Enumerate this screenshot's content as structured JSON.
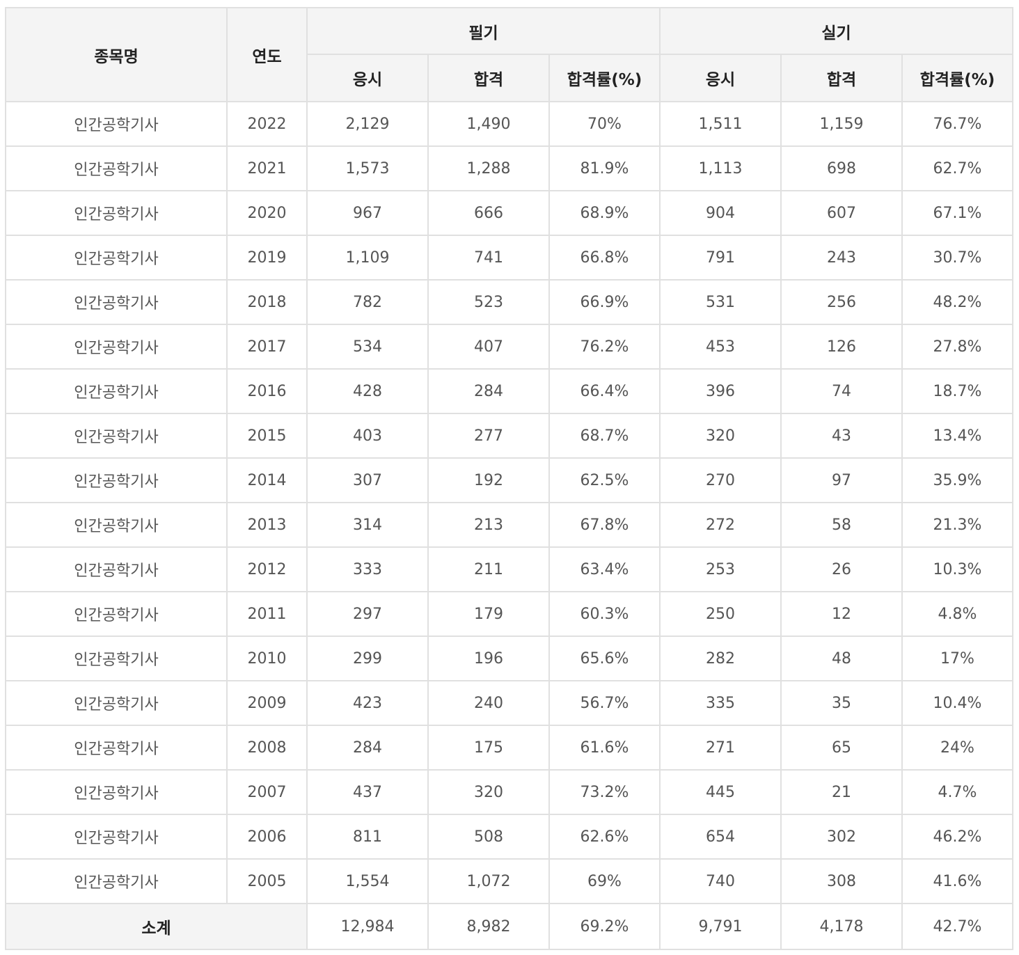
{
  "header": {
    "col_name": "종목명",
    "col_year": "연도",
    "group_written": "필기",
    "group_practical": "실기",
    "sub_apply": "응시",
    "sub_pass": "합격",
    "sub_rate": "합격률(%)"
  },
  "rows": [
    {
      "name": "인간공학기사",
      "year": "2022",
      "w_apply": "2,129",
      "w_pass": "1,490",
      "w_rate": "70%",
      "p_apply": "1,511",
      "p_pass": "1,159",
      "p_rate": "76.7%"
    },
    {
      "name": "인간공학기사",
      "year": "2021",
      "w_apply": "1,573",
      "w_pass": "1,288",
      "w_rate": "81.9%",
      "p_apply": "1,113",
      "p_pass": "698",
      "p_rate": "62.7%"
    },
    {
      "name": "인간공학기사",
      "year": "2020",
      "w_apply": "967",
      "w_pass": "666",
      "w_rate": "68.9%",
      "p_apply": "904",
      "p_pass": "607",
      "p_rate": "67.1%"
    },
    {
      "name": "인간공학기사",
      "year": "2019",
      "w_apply": "1,109",
      "w_pass": "741",
      "w_rate": "66.8%",
      "p_apply": "791",
      "p_pass": "243",
      "p_rate": "30.7%"
    },
    {
      "name": "인간공학기사",
      "year": "2018",
      "w_apply": "782",
      "w_pass": "523",
      "w_rate": "66.9%",
      "p_apply": "531",
      "p_pass": "256",
      "p_rate": "48.2%"
    },
    {
      "name": "인간공학기사",
      "year": "2017",
      "w_apply": "534",
      "w_pass": "407",
      "w_rate": "76.2%",
      "p_apply": "453",
      "p_pass": "126",
      "p_rate": "27.8%"
    },
    {
      "name": "인간공학기사",
      "year": "2016",
      "w_apply": "428",
      "w_pass": "284",
      "w_rate": "66.4%",
      "p_apply": "396",
      "p_pass": "74",
      "p_rate": "18.7%"
    },
    {
      "name": "인간공학기사",
      "year": "2015",
      "w_apply": "403",
      "w_pass": "277",
      "w_rate": "68.7%",
      "p_apply": "320",
      "p_pass": "43",
      "p_rate": "13.4%"
    },
    {
      "name": "인간공학기사",
      "year": "2014",
      "w_apply": "307",
      "w_pass": "192",
      "w_rate": "62.5%",
      "p_apply": "270",
      "p_pass": "97",
      "p_rate": "35.9%"
    },
    {
      "name": "인간공학기사",
      "year": "2013",
      "w_apply": "314",
      "w_pass": "213",
      "w_rate": "67.8%",
      "p_apply": "272",
      "p_pass": "58",
      "p_rate": "21.3%"
    },
    {
      "name": "인간공학기사",
      "year": "2012",
      "w_apply": "333",
      "w_pass": "211",
      "w_rate": "63.4%",
      "p_apply": "253",
      "p_pass": "26",
      "p_rate": "10.3%"
    },
    {
      "name": "인간공학기사",
      "year": "2011",
      "w_apply": "297",
      "w_pass": "179",
      "w_rate": "60.3%",
      "p_apply": "250",
      "p_pass": "12",
      "p_rate": "4.8%"
    },
    {
      "name": "인간공학기사",
      "year": "2010",
      "w_apply": "299",
      "w_pass": "196",
      "w_rate": "65.6%",
      "p_apply": "282",
      "p_pass": "48",
      "p_rate": "17%"
    },
    {
      "name": "인간공학기사",
      "year": "2009",
      "w_apply": "423",
      "w_pass": "240",
      "w_rate": "56.7%",
      "p_apply": "335",
      "p_pass": "35",
      "p_rate": "10.4%"
    },
    {
      "name": "인간공학기사",
      "year": "2008",
      "w_apply": "284",
      "w_pass": "175",
      "w_rate": "61.6%",
      "p_apply": "271",
      "p_pass": "65",
      "p_rate": "24%"
    },
    {
      "name": "인간공학기사",
      "year": "2007",
      "w_apply": "437",
      "w_pass": "320",
      "w_rate": "73.2%",
      "p_apply": "445",
      "p_pass": "21",
      "p_rate": "4.7%"
    },
    {
      "name": "인간공학기사",
      "year": "2006",
      "w_apply": "811",
      "w_pass": "508",
      "w_rate": "62.6%",
      "p_apply": "654",
      "p_pass": "302",
      "p_rate": "46.2%"
    },
    {
      "name": "인간공학기사",
      "year": "2005",
      "w_apply": "1,554",
      "w_pass": "1,072",
      "w_rate": "69%",
      "p_apply": "740",
      "p_pass": "308",
      "p_rate": "41.6%"
    }
  ],
  "total": {
    "label": "소계",
    "w_apply": "12,984",
    "w_pass": "8,982",
    "w_rate": "69.2%",
    "p_apply": "9,791",
    "p_pass": "4,178",
    "p_rate": "42.7%"
  }
}
